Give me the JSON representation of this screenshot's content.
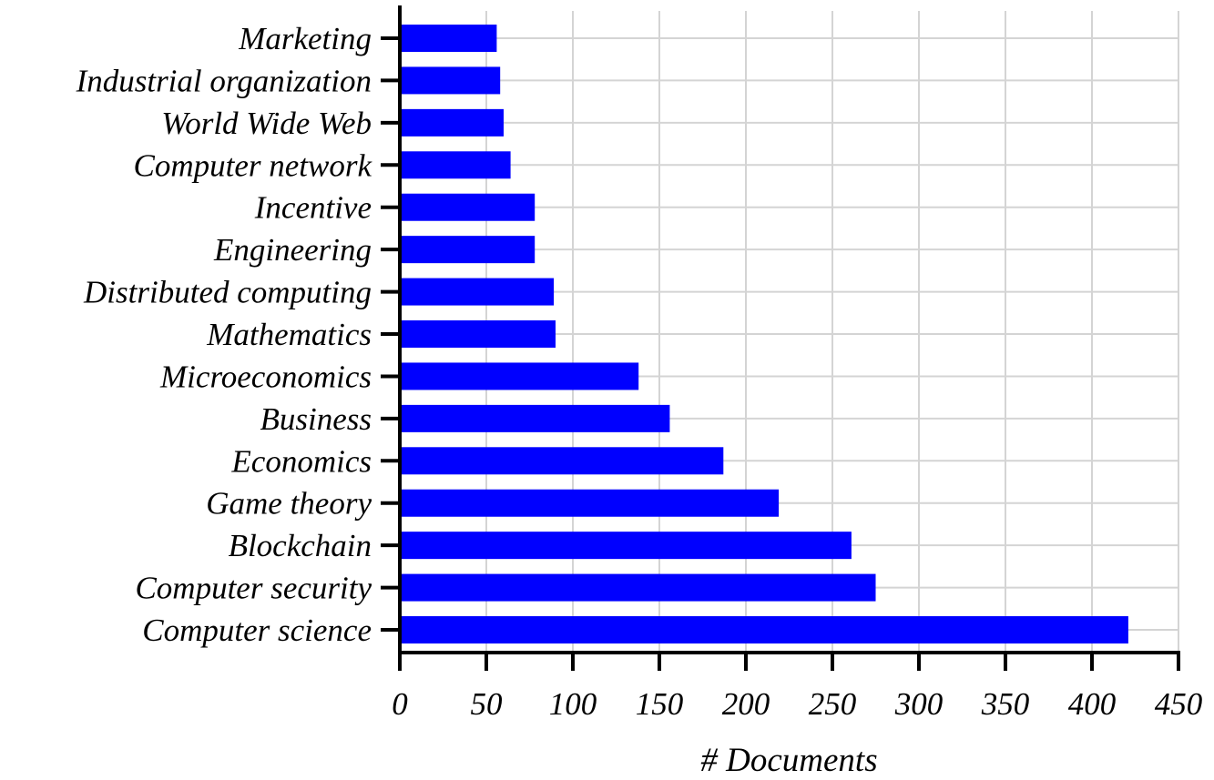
{
  "chart_data": {
    "type": "bar",
    "orientation": "horizontal",
    "categories": [
      "Marketing",
      "Industrial organization",
      "World Wide Web",
      "Computer network",
      "Incentive",
      "Engineering",
      "Distributed computing",
      "Mathematics",
      "Microeconomics",
      "Business",
      "Economics",
      "Game theory",
      "Blockchain",
      "Computer security",
      "Computer science"
    ],
    "values": [
      56,
      58,
      60,
      64,
      78,
      78,
      89,
      90,
      138,
      156,
      187,
      219,
      261,
      275,
      421
    ],
    "xlabel": "# Documents",
    "ylabel": "",
    "xlim": [
      0,
      450
    ],
    "xticks": [
      "0",
      "50",
      "100",
      "150",
      "200",
      "250",
      "300",
      "350",
      "400",
      "450"
    ],
    "grid": true,
    "bar_color": "#0000ff",
    "grid_color": "#d4d4d4"
  }
}
